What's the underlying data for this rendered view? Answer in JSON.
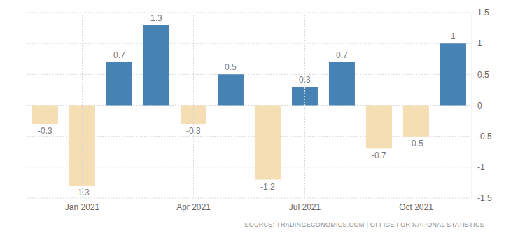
{
  "chart_data": {
    "type": "bar",
    "source": "SOURCE: TRADINGECONOMICS.COM | OFFICE FOR NATIONAL STATISTICS",
    "categories": [
      null,
      "Jan 2021",
      null,
      null,
      "Apr 2021",
      null,
      null,
      "Jul 2021",
      null,
      null,
      "Oct 2021",
      null
    ],
    "values": [
      -0.3,
      -1.3,
      0.7,
      1.3,
      -0.3,
      0.5,
      -1.2,
      0.3,
      0.7,
      -0.7,
      -0.5,
      1
    ],
    "colors": [
      "#f5deb3",
      "#f5deb3",
      "#4682b4",
      "#4682b4",
      "#f5deb3",
      "#4682b4",
      "#f5deb3",
      "#4682b4",
      "#4682b4",
      "#f5deb3",
      "#f5deb3",
      "#4682b4"
    ],
    "ylim": [
      -1.5,
      1.5
    ],
    "yticks": [
      -1.5,
      -1,
      -0.5,
      0,
      0.5,
      1,
      1.5
    ],
    "grid": true,
    "data_labels": true
  }
}
